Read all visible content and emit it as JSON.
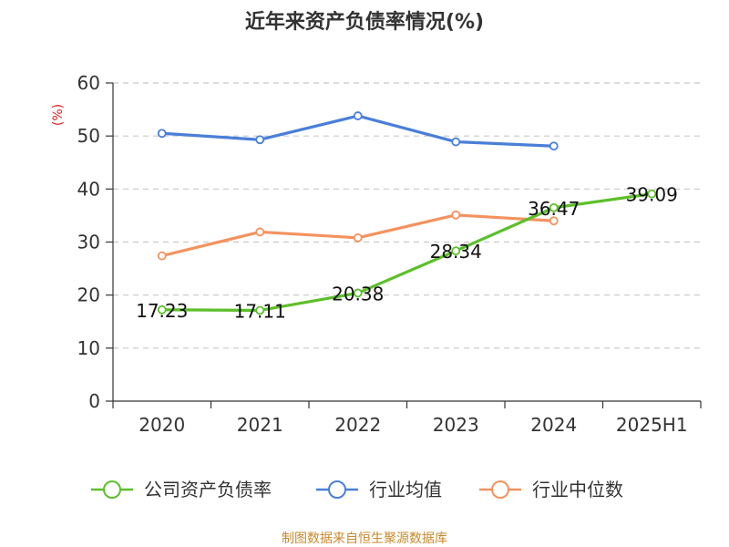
{
  "chart_data": {
    "type": "line",
    "title": "近年来资产负债率情况(%)",
    "y_unit": "(%)",
    "categories": [
      "2020",
      "2021",
      "2022",
      "2023",
      "2024",
      "2025H1"
    ],
    "ylim": [
      0,
      60
    ],
    "yticks": [
      "0",
      "10",
      "20",
      "30",
      "40",
      "50",
      "60"
    ],
    "grid": true,
    "legend_position": "bottom",
    "series": [
      {
        "name": "公司资产负债率",
        "color": "#5cbf2a",
        "values": [
          17.23,
          17.11,
          20.38,
          28.34,
          36.47,
          39.09
        ],
        "labels": [
          "17.23",
          "17.11",
          "20.38",
          "28.34",
          "36.47",
          "39.09"
        ]
      },
      {
        "name": "行业均值",
        "color": "#4a7fd8",
        "values": [
          50.5,
          49.3,
          53.8,
          48.9,
          48.1,
          null
        ]
      },
      {
        "name": "行业中位数",
        "color": "#f4925e",
        "values": [
          27.4,
          31.9,
          30.8,
          35.1,
          34.0,
          null
        ]
      }
    ]
  },
  "source_text": "制图数据来自恒生聚源数据库"
}
